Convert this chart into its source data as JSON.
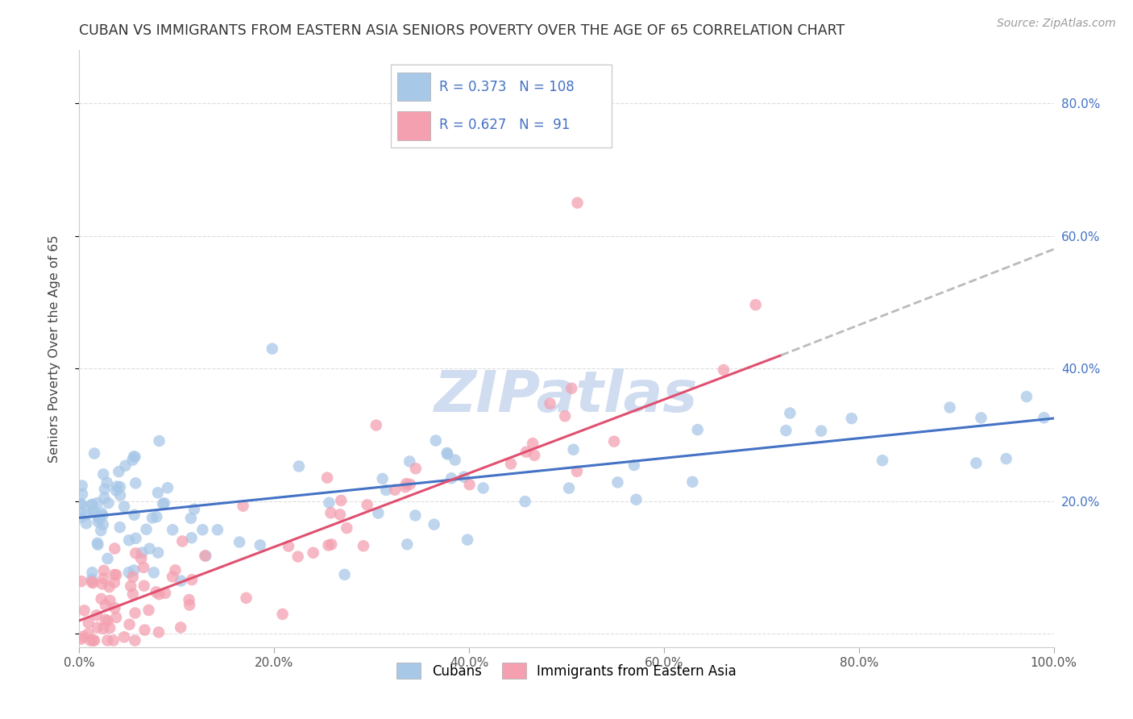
{
  "title": "CUBAN VS IMMIGRANTS FROM EASTERN ASIA SENIORS POVERTY OVER THE AGE OF 65 CORRELATION CHART",
  "source": "Source: ZipAtlas.com",
  "ylabel": "Seniors Poverty Over the Age of 65",
  "xlim": [
    0,
    1.0
  ],
  "ylim": [
    -0.02,
    0.88
  ],
  "ytick_positions": [
    0.0,
    0.2,
    0.4,
    0.6,
    0.8
  ],
  "ytick_labels_right": [
    "",
    "20.0%",
    "40.0%",
    "60.0%",
    "80.0%"
  ],
  "xtick_positions": [
    0.0,
    0.2,
    0.4,
    0.6,
    0.8,
    1.0
  ],
  "xtick_labels": [
    "0.0%",
    "20.0%",
    "40.0%",
    "60.0%",
    "80.0%",
    "100.0%"
  ],
  "cubans_R": 0.373,
  "cubans_N": 108,
  "eastern_asia_R": 0.627,
  "eastern_asia_N": 91,
  "legend_label_1": "Cubans",
  "legend_label_2": "Immigrants from Eastern Asia",
  "color_blue_scatter": "#A8C8E8",
  "color_pink_scatter": "#F4A0B0",
  "color_blue_line": "#4472C4",
  "color_pink_line": "#E05070",
  "color_blue_text": "#4472C4",
  "color_pink_text": "#E05070",
  "color_dashed_line": "#BBBBBB",
  "background_color": "#FFFFFF",
  "grid_color": "#DDDDDD",
  "title_color": "#333333",
  "blue_trend_x0": 0.0,
  "blue_trend_y0": 0.175,
  "blue_trend_x1": 1.0,
  "blue_trend_y1": 0.325,
  "pink_trend_x0": 0.0,
  "pink_trend_y0": 0.02,
  "pink_trend_solid_x1": 0.72,
  "pink_trend_solid_y1": 0.42,
  "pink_trend_dashed_x1": 1.0,
  "pink_trend_dashed_y1": 0.58,
  "watermark_text": "ZIPatlas",
  "watermark_color": "#D0DCF0"
}
